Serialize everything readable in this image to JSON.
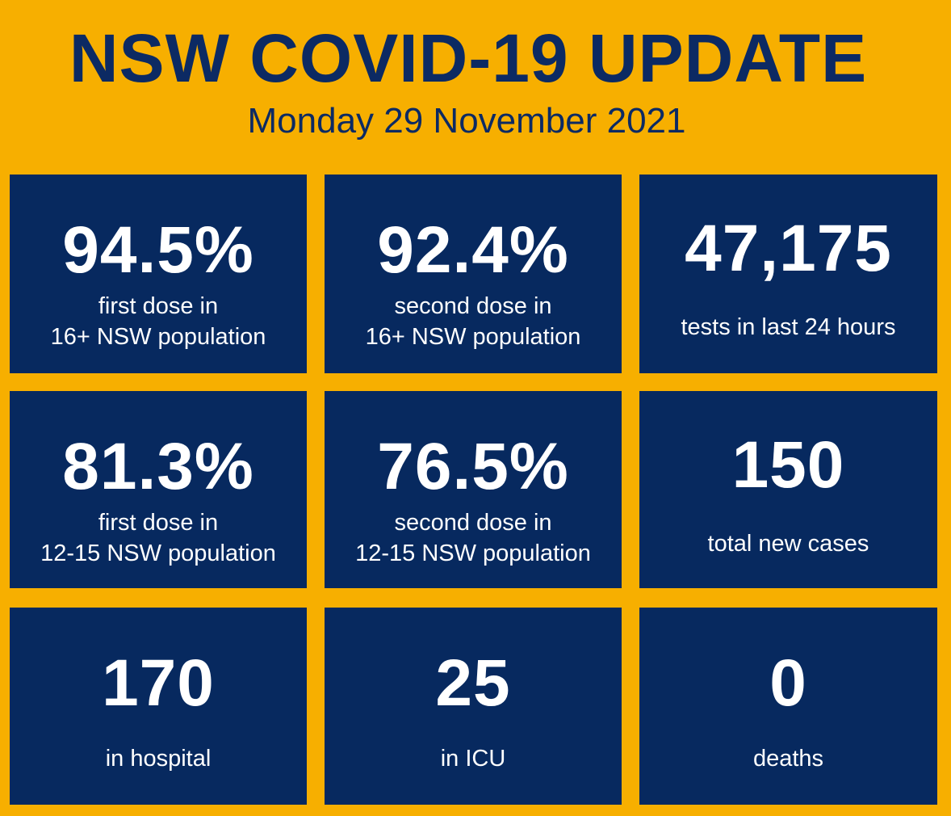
{
  "header": {
    "title": "NSW COVID-19 UPDATE",
    "date": "Monday 29 November 2021"
  },
  "colors": {
    "background": "#F7AF00",
    "tile": "#07295F",
    "title_text": "#0C2A63",
    "tile_text": "#FFFFFF"
  },
  "stats": [
    {
      "value": "94.5%",
      "label_line1": "first dose in",
      "label_line2": "16+ NSW population"
    },
    {
      "value": "92.4%",
      "label_line1": "second dose in",
      "label_line2": "16+ NSW population"
    },
    {
      "value": "47,175",
      "label_line1": "tests in last 24 hours"
    },
    {
      "value": "81.3%",
      "label_line1": "first dose in",
      "label_line2": "12-15 NSW population"
    },
    {
      "value": "76.5%",
      "label_line1": "second dose in",
      "label_line2": "12-15 NSW population"
    },
    {
      "value": "150",
      "label_line1": "total new cases"
    },
    {
      "value": "170",
      "label_line1": "in hospital"
    },
    {
      "value": "25",
      "label_line1": "in ICU"
    },
    {
      "value": "0",
      "label_line1": "deaths"
    }
  ]
}
